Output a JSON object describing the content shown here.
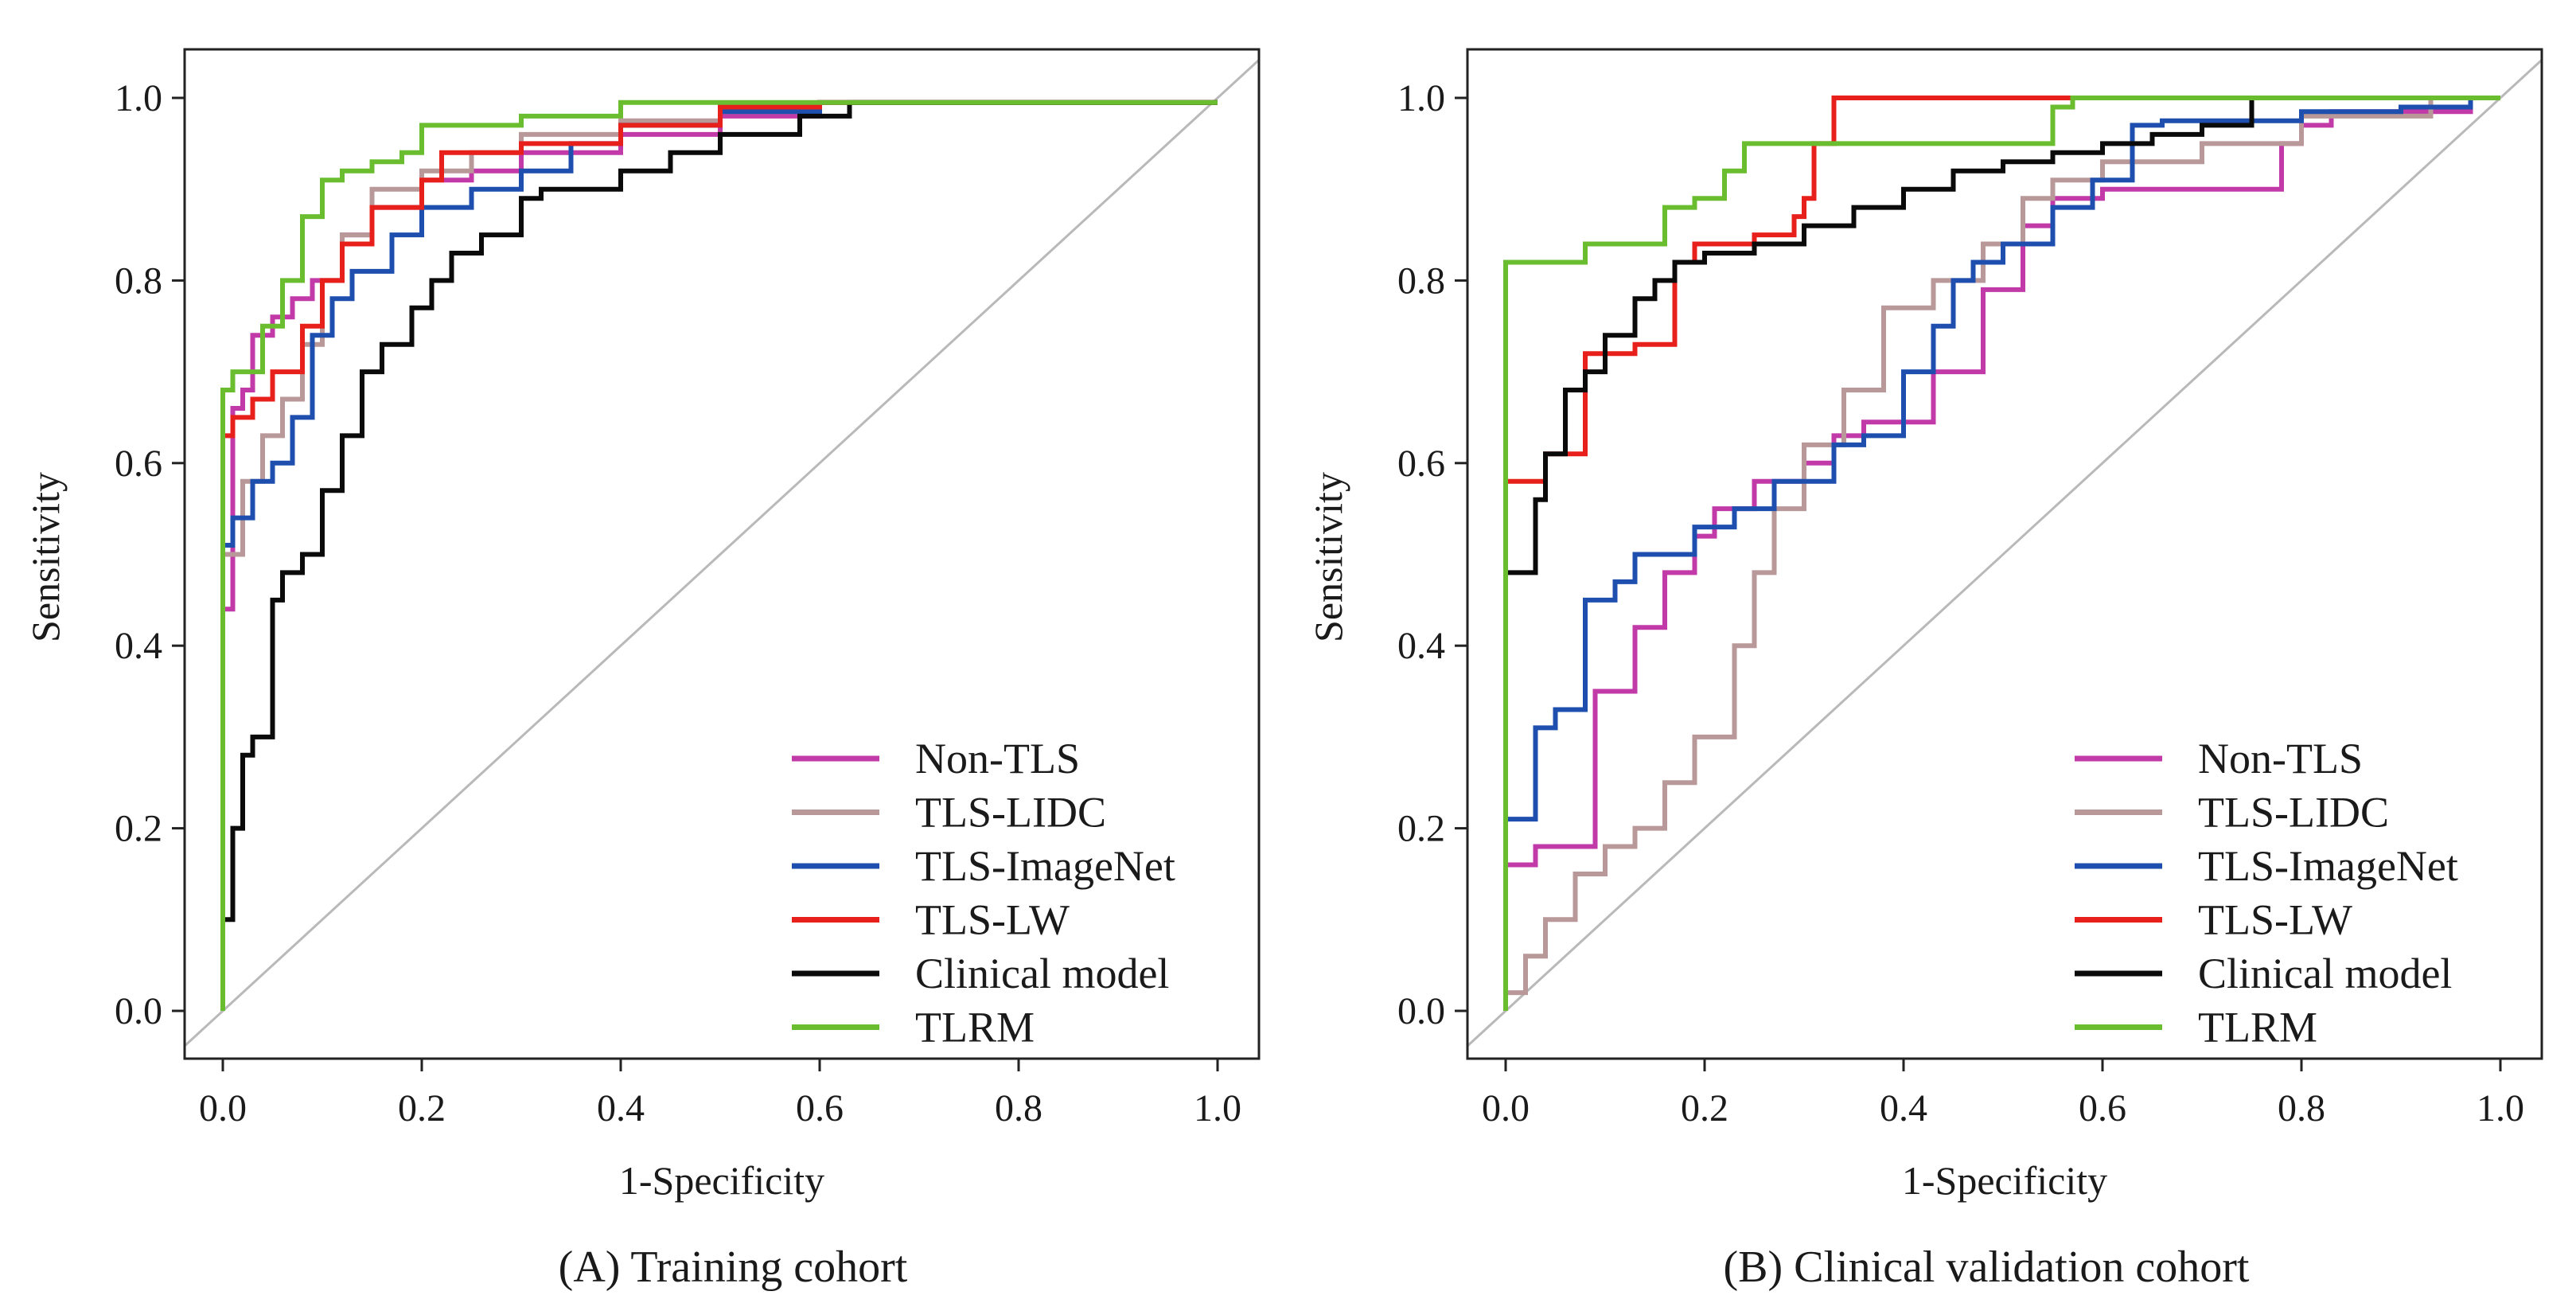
{
  "colors": {
    "Non-TLS": "#c23aa8",
    "TLS-LIDC": "#b9989a",
    "TLS-ImageNet": "#1f4fae",
    "TLS-LW": "#e8201c",
    "Clinical model": "#0a0a0a",
    "TLRM": "#6abd2f",
    "reference": "#b9b9b9",
    "frame": "#222222"
  },
  "chart_data": [
    {
      "type": "line",
      "title": "(A) Training cohort",
      "xlabel": "1-Specificity",
      "ylabel": "Sensitivity",
      "xlim": [
        0.0,
        1.0
      ],
      "ylim": [
        0.0,
        1.0
      ],
      "xticks": [
        "0.0",
        "0.2",
        "0.4",
        "0.6",
        "0.8",
        "1.0"
      ],
      "yticks": [
        "0.0",
        "0.2",
        "0.4",
        "0.6",
        "0.8",
        "1.0"
      ],
      "legend_position": "bottom-right",
      "reference_line": [
        [
          0,
          0
        ],
        [
          1,
          1
        ]
      ],
      "series": [
        {
          "name": "Non-TLS",
          "points": [
            [
              0,
              0.29
            ],
            [
              0.01,
              0.44
            ],
            [
              0.02,
              0.66
            ],
            [
              0.03,
              0.68
            ],
            [
              0.05,
              0.74
            ],
            [
              0.07,
              0.76
            ],
            [
              0.09,
              0.78
            ],
            [
              0.12,
              0.8
            ],
            [
              0.15,
              0.85
            ],
            [
              0.2,
              0.88
            ],
            [
              0.25,
              0.91
            ],
            [
              0.3,
              0.92
            ],
            [
              0.4,
              0.94
            ],
            [
              0.5,
              0.96
            ],
            [
              0.6,
              0.98
            ],
            [
              0.66,
              0.995
            ],
            [
              1,
              0.995
            ]
          ]
        },
        {
          "name": "TLS-LIDC",
          "points": [
            [
              0,
              0.33
            ],
            [
              0.02,
              0.5
            ],
            [
              0.04,
              0.58
            ],
            [
              0.06,
              0.63
            ],
            [
              0.08,
              0.67
            ],
            [
              0.1,
              0.73
            ],
            [
              0.12,
              0.8
            ],
            [
              0.15,
              0.85
            ],
            [
              0.2,
              0.9
            ],
            [
              0.25,
              0.92
            ],
            [
              0.3,
              0.94
            ],
            [
              0.4,
              0.96
            ],
            [
              0.5,
              0.975
            ],
            [
              0.6,
              0.985
            ],
            [
              0.65,
              0.995
            ],
            [
              1,
              0.995
            ]
          ]
        },
        {
          "name": "TLS-ImageNet",
          "points": [
            [
              0,
              0.45
            ],
            [
              0.01,
              0.51
            ],
            [
              0.03,
              0.54
            ],
            [
              0.05,
              0.58
            ],
            [
              0.07,
              0.6
            ],
            [
              0.09,
              0.65
            ],
            [
              0.11,
              0.74
            ],
            [
              0.13,
              0.78
            ],
            [
              0.17,
              0.81
            ],
            [
              0.2,
              0.85
            ],
            [
              0.25,
              0.88
            ],
            [
              0.3,
              0.9
            ],
            [
              0.35,
              0.92
            ],
            [
              0.4,
              0.95
            ],
            [
              0.5,
              0.97
            ],
            [
              0.6,
              0.985
            ],
            [
              0.67,
              0.995
            ],
            [
              1,
              0.995
            ]
          ]
        },
        {
          "name": "TLS-LW",
          "points": [
            [
              0,
              0.33
            ],
            [
              0.01,
              0.63
            ],
            [
              0.03,
              0.65
            ],
            [
              0.05,
              0.67
            ],
            [
              0.08,
              0.7
            ],
            [
              0.1,
              0.75
            ],
            [
              0.12,
              0.8
            ],
            [
              0.15,
              0.84
            ],
            [
              0.2,
              0.88
            ],
            [
              0.22,
              0.91
            ],
            [
              0.3,
              0.94
            ],
            [
              0.4,
              0.95
            ],
            [
              0.5,
              0.97
            ],
            [
              0.6,
              0.99
            ],
            [
              0.65,
              0.995
            ],
            [
              1,
              0.995
            ]
          ]
        },
        {
          "name": "Clinical model",
          "points": [
            [
              0,
              0.04
            ],
            [
              0.01,
              0.1
            ],
            [
              0.02,
              0.2
            ],
            [
              0.03,
              0.28
            ],
            [
              0.05,
              0.3
            ],
            [
              0.06,
              0.45
            ],
            [
              0.08,
              0.48
            ],
            [
              0.1,
              0.5
            ],
            [
              0.12,
              0.57
            ],
            [
              0.14,
              0.63
            ],
            [
              0.16,
              0.7
            ],
            [
              0.19,
              0.73
            ],
            [
              0.21,
              0.77
            ],
            [
              0.23,
              0.8
            ],
            [
              0.26,
              0.83
            ],
            [
              0.3,
              0.85
            ],
            [
              0.32,
              0.89
            ],
            [
              0.4,
              0.9
            ],
            [
              0.45,
              0.92
            ],
            [
              0.5,
              0.94
            ],
            [
              0.58,
              0.96
            ],
            [
              0.63,
              0.98
            ],
            [
              0.67,
              0.995
            ],
            [
              1,
              0.995
            ]
          ]
        },
        {
          "name": "TLRM",
          "points": [
            [
              0,
              0
            ],
            [
              0,
              0.45
            ],
            [
              0.01,
              0.68
            ],
            [
              0.04,
              0.7
            ],
            [
              0.06,
              0.75
            ],
            [
              0.08,
              0.8
            ],
            [
              0.1,
              0.87
            ],
            [
              0.12,
              0.91
            ],
            [
              0.15,
              0.92
            ],
            [
              0.18,
              0.93
            ],
            [
              0.2,
              0.94
            ],
            [
              0.3,
              0.97
            ],
            [
              0.4,
              0.98
            ],
            [
              0.5,
              0.995
            ],
            [
              1,
              0.995
            ]
          ]
        }
      ]
    },
    {
      "type": "line",
      "title": "(B) Clinical validation cohort",
      "xlabel": "1-Specificity",
      "ylabel": "Sensitivity",
      "xlim": [
        0.0,
        1.0
      ],
      "ylim": [
        0.0,
        1.0
      ],
      "xticks": [
        "0.0",
        "0.2",
        "0.4",
        "0.6",
        "0.8",
        "1.0"
      ],
      "yticks": [
        "0.0",
        "0.2",
        "0.4",
        "0.6",
        "0.8",
        "1.0"
      ],
      "legend_position": "bottom-right",
      "reference_line": [
        [
          0,
          0
        ],
        [
          1,
          1
        ]
      ],
      "series": [
        {
          "name": "Non-TLS",
          "points": [
            [
              0,
              0
            ],
            [
              0,
              0.145
            ],
            [
              0.03,
              0.16
            ],
            [
              0.09,
              0.18
            ],
            [
              0.13,
              0.35
            ],
            [
              0.16,
              0.42
            ],
            [
              0.19,
              0.48
            ],
            [
              0.21,
              0.52
            ],
            [
              0.25,
              0.55
            ],
            [
              0.3,
              0.58
            ],
            [
              0.33,
              0.6
            ],
            [
              0.36,
              0.63
            ],
            [
              0.43,
              0.645
            ],
            [
              0.48,
              0.7
            ],
            [
              0.52,
              0.79
            ],
            [
              0.55,
              0.86
            ],
            [
              0.6,
              0.89
            ],
            [
              0.65,
              0.9
            ],
            [
              0.78,
              0.9
            ],
            [
              0.8,
              0.95
            ],
            [
              0.83,
              0.97
            ],
            [
              0.97,
              0.985
            ],
            [
              1,
              1
            ]
          ]
        },
        {
          "name": "TLS-LIDC",
          "points": [
            [
              0,
              0
            ],
            [
              0.02,
              0.02
            ],
            [
              0.04,
              0.06
            ],
            [
              0.07,
              0.1
            ],
            [
              0.1,
              0.15
            ],
            [
              0.13,
              0.18
            ],
            [
              0.16,
              0.2
            ],
            [
              0.19,
              0.25
            ],
            [
              0.23,
              0.3
            ],
            [
              0.25,
              0.4
            ],
            [
              0.27,
              0.48
            ],
            [
              0.3,
              0.55
            ],
            [
              0.34,
              0.62
            ],
            [
              0.38,
              0.68
            ],
            [
              0.43,
              0.77
            ],
            [
              0.48,
              0.8
            ],
            [
              0.52,
              0.84
            ],
            [
              0.55,
              0.89
            ],
            [
              0.6,
              0.91
            ],
            [
              0.7,
              0.93
            ],
            [
              0.8,
              0.95
            ],
            [
              0.93,
              0.98
            ],
            [
              1,
              1
            ]
          ]
        },
        {
          "name": "TLS-ImageNet",
          "points": [
            [
              0,
              0
            ],
            [
              0.0,
              0.03
            ],
            [
              0.03,
              0.21
            ],
            [
              0.05,
              0.31
            ],
            [
              0.08,
              0.33
            ],
            [
              0.11,
              0.45
            ],
            [
              0.13,
              0.47
            ],
            [
              0.19,
              0.5
            ],
            [
              0.23,
              0.53
            ],
            [
              0.27,
              0.55
            ],
            [
              0.33,
              0.58
            ],
            [
              0.36,
              0.62
            ],
            [
              0.4,
              0.63
            ],
            [
              0.43,
              0.7
            ],
            [
              0.45,
              0.75
            ],
            [
              0.47,
              0.8
            ],
            [
              0.5,
              0.82
            ],
            [
              0.55,
              0.84
            ],
            [
              0.59,
              0.88
            ],
            [
              0.63,
              0.91
            ],
            [
              0.66,
              0.97
            ],
            [
              0.8,
              0.975
            ],
            [
              0.9,
              0.985
            ],
            [
              0.97,
              0.99
            ],
            [
              1,
              1
            ]
          ]
        },
        {
          "name": "TLS-LW",
          "points": [
            [
              0,
              0.548
            ],
            [
              0.04,
              0.58
            ],
            [
              0.08,
              0.61
            ],
            [
              0.13,
              0.72
            ],
            [
              0.17,
              0.73
            ],
            [
              0.19,
              0.82
            ],
            [
              0.22,
              0.84
            ],
            [
              0.25,
              0.84
            ],
            [
              0.29,
              0.85
            ],
            [
              0.3,
              0.87
            ],
            [
              0.31,
              0.89
            ],
            [
              0.33,
              0.95
            ],
            [
              0.35,
              1.0
            ],
            [
              0.67,
              1.0
            ]
          ]
        },
        {
          "name": "Clinical model",
          "points": [
            [
              0,
              0.47
            ],
            [
              0.03,
              0.48
            ],
            [
              0.04,
              0.56
            ],
            [
              0.06,
              0.61
            ],
            [
              0.08,
              0.68
            ],
            [
              0.1,
              0.7
            ],
            [
              0.13,
              0.74
            ],
            [
              0.15,
              0.78
            ],
            [
              0.17,
              0.8
            ],
            [
              0.2,
              0.82
            ],
            [
              0.25,
              0.83
            ],
            [
              0.3,
              0.84
            ],
            [
              0.35,
              0.86
            ],
            [
              0.4,
              0.88
            ],
            [
              0.45,
              0.9
            ],
            [
              0.5,
              0.92
            ],
            [
              0.55,
              0.93
            ],
            [
              0.6,
              0.94
            ],
            [
              0.65,
              0.95
            ],
            [
              0.7,
              0.96
            ],
            [
              0.75,
              0.97
            ],
            [
              0.76,
              1.0
            ],
            [
              1,
              1
            ]
          ]
        },
        {
          "name": "TLRM",
          "points": [
            [
              0,
              0
            ],
            [
              0,
              0.81
            ],
            [
              0.08,
              0.82
            ],
            [
              0.16,
              0.84
            ],
            [
              0.19,
              0.88
            ],
            [
              0.22,
              0.89
            ],
            [
              0.24,
              0.92
            ],
            [
              0.27,
              0.95
            ],
            [
              0.3,
              0.95
            ],
            [
              0.55,
              0.95
            ],
            [
              0.57,
              0.99
            ],
            [
              0.67,
              1.0
            ],
            [
              1,
              1
            ]
          ]
        }
      ]
    }
  ]
}
